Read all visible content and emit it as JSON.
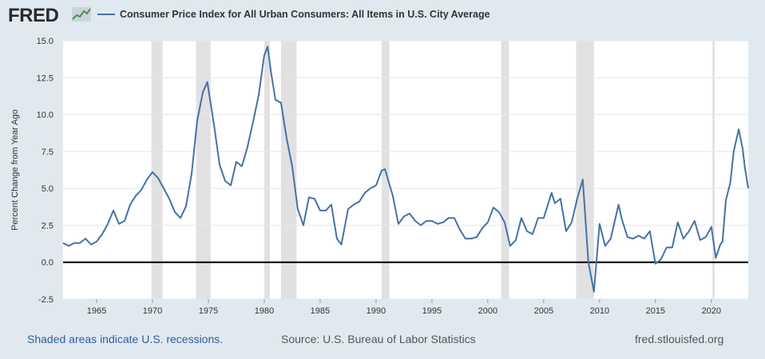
{
  "header": {
    "logo_text": "FRED",
    "logo_icon": "line-chart-icon",
    "legend": "Consumer Price Index for All Urban Consumers: All Items in U.S. City Average"
  },
  "footer": {
    "recessions": "Shaded areas indicate U.S. recessions.",
    "source": "Source: U.S. Bureau of Labor Statistics",
    "site": "fred.stlouisfed.org"
  },
  "colors": {
    "line": "#4572a7",
    "recession": "#e1e1e1",
    "background": "#e1e9f0",
    "plot": "#ffffff"
  },
  "chart_data": {
    "type": "line",
    "title": "",
    "xlabel": "",
    "ylabel": "Percent Change from Year Ago",
    "xlim": [
      1962.0,
      2023.3
    ],
    "ylim": [
      -2.5,
      15.0
    ],
    "yticks": [
      "15.0",
      "12.5",
      "10.0",
      "7.5",
      "5.0",
      "2.5",
      "0.0",
      "-2.5"
    ],
    "xticks": [
      "1965",
      "1970",
      "1975",
      "1980",
      "1985",
      "1990",
      "1995",
      "2000",
      "2005",
      "2010",
      "2015",
      "2020"
    ],
    "grid": "horizontal",
    "recessions": [
      [
        1969.9,
        1970.9
      ],
      [
        1973.9,
        1975.2
      ],
      [
        1980.0,
        1980.5
      ],
      [
        1981.5,
        1982.9
      ],
      [
        1990.5,
        1991.2
      ],
      [
        2001.2,
        2001.9
      ],
      [
        2007.9,
        2009.5
      ],
      [
        2020.1,
        2020.3
      ]
    ],
    "series": [
      {
        "name": "Consumer Price Index for All Urban Consumers: All Items in U.S. City Average",
        "x": [
          1962.0,
          1962.5,
          1963.0,
          1963.5,
          1964.0,
          1964.5,
          1965.0,
          1965.5,
          1966.0,
          1966.5,
          1967.0,
          1967.5,
          1968.0,
          1968.5,
          1969.0,
          1969.5,
          1970.0,
          1970.5,
          1971.0,
          1971.5,
          1972.0,
          1972.5,
          1973.0,
          1973.5,
          1974.0,
          1974.5,
          1974.9,
          1975.5,
          1976.0,
          1976.5,
          1977.0,
          1977.5,
          1978.0,
          1978.5,
          1979.0,
          1979.5,
          1980.0,
          1980.3,
          1980.6,
          1981.0,
          1981.5,
          1982.0,
          1982.5,
          1983.0,
          1983.5,
          1984.0,
          1984.5,
          1985.0,
          1985.5,
          1986.0,
          1986.5,
          1986.9,
          1987.5,
          1988.0,
          1988.5,
          1989.0,
          1989.5,
          1990.0,
          1990.5,
          1990.8,
          1991.5,
          1992.0,
          1992.5,
          1993.0,
          1993.5,
          1994.0,
          1994.5,
          1995.0,
          1995.5,
          1996.0,
          1996.5,
          1997.0,
          1997.5,
          1998.0,
          1998.5,
          1999.0,
          1999.5,
          2000.0,
          2000.5,
          2001.0,
          2001.5,
          2002.0,
          2002.5,
          2003.0,
          2003.5,
          2004.0,
          2004.5,
          2005.0,
          2005.7,
          2006.0,
          2006.5,
          2007.0,
          2007.5,
          2008.0,
          2008.5,
          2009.0,
          2009.5,
          2010.0,
          2010.5,
          2011.0,
          2011.7,
          2012.0,
          2012.5,
          2013.0,
          2013.5,
          2014.0,
          2014.5,
          2015.0,
          2015.5,
          2016.0,
          2016.5,
          2017.0,
          2017.5,
          2018.0,
          2018.5,
          2019.0,
          2019.5,
          2020.0,
          2020.4,
          2020.8,
          2021.0,
          2021.3,
          2021.7,
          2022.0,
          2022.45,
          2022.8,
          2023.0,
          2023.3
        ],
        "values": [
          1.3,
          1.1,
          1.3,
          1.3,
          1.6,
          1.2,
          1.4,
          1.9,
          2.6,
          3.5,
          2.6,
          2.8,
          3.9,
          4.5,
          4.9,
          5.6,
          6.1,
          5.7,
          5.0,
          4.3,
          3.4,
          3.0,
          3.8,
          6.0,
          9.6,
          11.5,
          12.2,
          9.3,
          6.6,
          5.5,
          5.2,
          6.8,
          6.5,
          7.8,
          9.5,
          11.3,
          14.0,
          14.6,
          12.9,
          11.0,
          10.8,
          8.4,
          6.5,
          3.6,
          2.5,
          4.4,
          4.3,
          3.5,
          3.5,
          3.9,
          1.6,
          1.2,
          3.6,
          3.9,
          4.1,
          4.7,
          5.0,
          5.2,
          6.2,
          6.3,
          4.5,
          2.6,
          3.1,
          3.3,
          2.8,
          2.5,
          2.8,
          2.8,
          2.6,
          2.7,
          3.0,
          3.0,
          2.2,
          1.6,
          1.6,
          1.7,
          2.3,
          2.7,
          3.7,
          3.4,
          2.7,
          1.1,
          1.5,
          3.0,
          2.1,
          1.9,
          3.0,
          3.0,
          4.7,
          4.0,
          4.3,
          2.1,
          2.7,
          4.3,
          5.6,
          0.0,
          -2.0,
          2.6,
          1.1,
          1.6,
          3.9,
          2.9,
          1.7,
          1.6,
          1.8,
          1.6,
          2.1,
          -0.1,
          0.2,
          1.0,
          1.0,
          2.7,
          1.6,
          2.1,
          2.8,
          1.5,
          1.7,
          2.4,
          0.3,
          1.2,
          1.4,
          4.2,
          5.4,
          7.5,
          9.0,
          7.7,
          6.4,
          5.0
        ]
      }
    ]
  }
}
